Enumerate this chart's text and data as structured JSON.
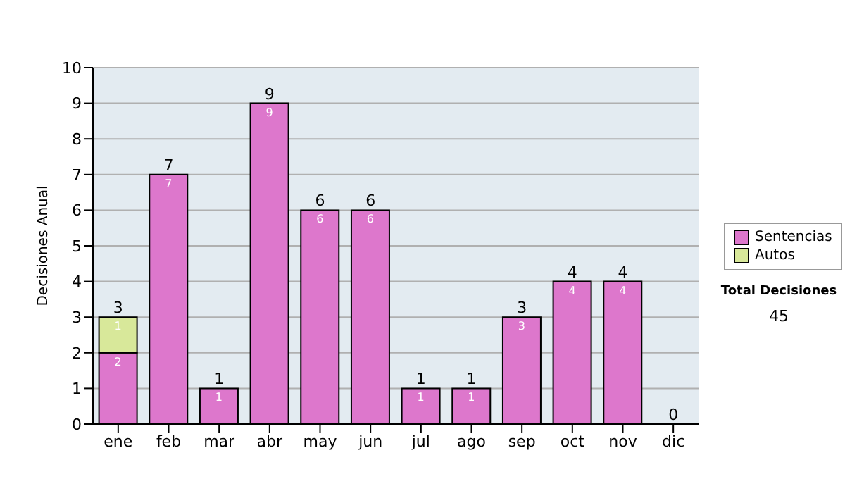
{
  "chart_data": {
    "type": "bar",
    "stacked": true,
    "ylabel": "Decisiones Anual",
    "categories": [
      "ene",
      "feb",
      "mar",
      "abr",
      "may",
      "jun",
      "jul",
      "ago",
      "sep",
      "oct",
      "nov",
      "dic"
    ],
    "series": [
      {
        "name": "Sentencias",
        "color": "#dd77cc",
        "values": [
          2,
          7,
          1,
          9,
          6,
          6,
          1,
          1,
          3,
          4,
          4,
          0
        ],
        "value_labels": [
          "2",
          "7",
          "1",
          "9",
          "6",
          "6",
          "1",
          "1",
          "3",
          "4",
          "4",
          null
        ]
      },
      {
        "name": "Autos",
        "color": "#d8e89a",
        "values": [
          1,
          0,
          0,
          0,
          0,
          0,
          0,
          0,
          0,
          0,
          0,
          0
        ],
        "value_labels": [
          "1",
          null,
          null,
          null,
          null,
          null,
          null,
          null,
          null,
          null,
          null,
          null
        ]
      }
    ],
    "totals": [
      "3",
      "7",
      "1",
      "9",
      "6",
      "6",
      "1",
      "1",
      "3",
      "4",
      "4",
      "0"
    ],
    "ylim": [
      0,
      10
    ],
    "yticks": [
      0,
      1,
      2,
      3,
      4,
      5,
      6,
      7,
      8,
      9,
      10
    ],
    "grid": "y",
    "legend": "right",
    "annotations": [
      "Total Decisiones",
      "45"
    ]
  }
}
